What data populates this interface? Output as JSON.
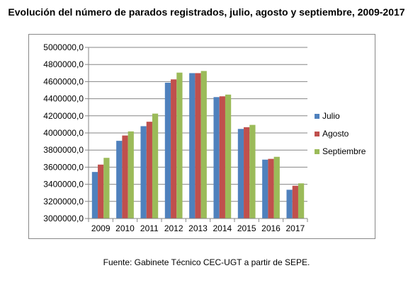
{
  "title": "Evolución del número de parados registrados, julio, agosto y septiembre, 2009-2017",
  "source": "Fuente: Gabinete Técnico CEC-UGT a partir de SEPE.",
  "chart_data": {
    "type": "bar",
    "categories": [
      "2009",
      "2010",
      "2011",
      "2012",
      "2013",
      "2014",
      "2015",
      "2016",
      "2017"
    ],
    "series": [
      {
        "name": "Julio",
        "color": "#4F81BD",
        "values": [
          3544000,
          3908000,
          4079000,
          4587000,
          4699000,
          4419000,
          4047000,
          3688000,
          3336000
        ]
      },
      {
        "name": "Agosto",
        "color": "#C0504D",
        "values": [
          3630000,
          3970000,
          4131000,
          4626000,
          4699000,
          4428000,
          4067000,
          3697000,
          3383000
        ]
      },
      {
        "name": "Septiembre",
        "color": "#9BBB59",
        "values": [
          3709000,
          4018000,
          4226000,
          4705000,
          4724000,
          4448000,
          4094000,
          3721000,
          3411000
        ]
      }
    ],
    "ylim": [
      3000000,
      5000000
    ],
    "ytick_step": 200000,
    "ytick_labels": [
      "3000000,0",
      "3200000,0",
      "3400000,0",
      "3600000,0",
      "3800000,0",
      "4000000,0",
      "4200000,0",
      "4400000,0",
      "4600000,0",
      "4800000,0",
      "5000000,0"
    ],
    "grid": true,
    "legend_position": "right"
  }
}
